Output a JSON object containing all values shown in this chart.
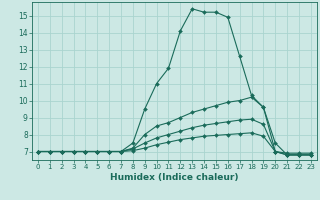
{
  "title": "",
  "xlabel": "Humidex (Indice chaleur)",
  "bg_color": "#cce8e4",
  "grid_color": "#aad4cf",
  "line_color": "#1a6b5a",
  "xlim": [
    -0.5,
    23.5
  ],
  "ylim": [
    6.5,
    15.8
  ],
  "xticks": [
    0,
    1,
    2,
    3,
    4,
    5,
    6,
    7,
    8,
    9,
    10,
    11,
    12,
    13,
    14,
    15,
    16,
    17,
    18,
    19,
    20,
    21,
    22,
    23
  ],
  "yticks": [
    7,
    8,
    9,
    10,
    11,
    12,
    13,
    14,
    15
  ],
  "lines": [
    {
      "x": [
        0,
        1,
        2,
        3,
        4,
        5,
        6,
        7,
        8,
        9,
        10,
        11,
        12,
        13,
        14,
        15,
        16,
        17,
        18,
        19,
        20,
        21,
        22,
        23
      ],
      "y": [
        7.0,
        7.0,
        7.0,
        7.0,
        7.0,
        7.0,
        7.0,
        7.0,
        7.5,
        9.5,
        11.0,
        11.9,
        14.1,
        15.4,
        15.2,
        15.2,
        14.9,
        12.6,
        10.3,
        9.6,
        7.5,
        6.8,
        6.8,
        6.8
      ]
    },
    {
      "x": [
        0,
        1,
        2,
        3,
        4,
        5,
        6,
        7,
        8,
        9,
        10,
        11,
        12,
        13,
        14,
        15,
        16,
        17,
        18,
        19,
        20,
        21,
        22,
        23
      ],
      "y": [
        7.0,
        7.0,
        7.0,
        7.0,
        7.0,
        7.0,
        7.0,
        7.0,
        7.2,
        8.0,
        8.5,
        8.7,
        9.0,
        9.3,
        9.5,
        9.7,
        9.9,
        10.0,
        10.2,
        9.6,
        7.0,
        6.9,
        6.9,
        6.9
      ]
    },
    {
      "x": [
        0,
        1,
        2,
        3,
        4,
        5,
        6,
        7,
        8,
        9,
        10,
        11,
        12,
        13,
        14,
        15,
        16,
        17,
        18,
        19,
        20,
        21,
        22,
        23
      ],
      "y": [
        7.0,
        7.0,
        7.0,
        7.0,
        7.0,
        7.0,
        7.0,
        7.0,
        7.15,
        7.5,
        7.8,
        8.0,
        8.2,
        8.4,
        8.55,
        8.65,
        8.75,
        8.85,
        8.9,
        8.6,
        7.0,
        6.8,
        6.8,
        6.8
      ]
    },
    {
      "x": [
        0,
        1,
        2,
        3,
        4,
        5,
        6,
        7,
        8,
        9,
        10,
        11,
        12,
        13,
        14,
        15,
        16,
        17,
        18,
        19,
        20,
        21,
        22,
        23
      ],
      "y": [
        7.0,
        7.0,
        7.0,
        7.0,
        7.0,
        7.0,
        7.0,
        7.0,
        7.05,
        7.2,
        7.4,
        7.55,
        7.7,
        7.8,
        7.9,
        7.95,
        8.0,
        8.05,
        8.1,
        7.9,
        7.0,
        6.8,
        6.8,
        6.8
      ]
    }
  ]
}
